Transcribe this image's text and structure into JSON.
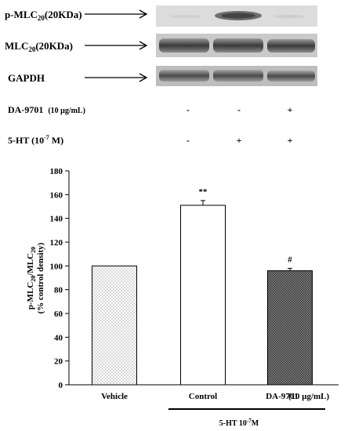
{
  "blot": {
    "rows": [
      {
        "label": "p-MLC",
        "subscript": "20",
        "suffix": "(20KDa)"
      },
      {
        "label": "MLC",
        "subscript": "20",
        "suffix": "(20KDa)"
      },
      {
        "label": "GAPDH",
        "subscript": "",
        "suffix": ""
      }
    ],
    "treatments": [
      {
        "label": "DA-9701",
        "conc": "(10 μg/mL)",
        "marks": [
          "-",
          "-",
          "+"
        ]
      },
      {
        "label": "5-HT (10",
        "exp": "-7",
        "unit": " M)",
        "marks": [
          "-",
          "+",
          "+"
        ]
      }
    ]
  },
  "chart_data": {
    "type": "bar",
    "categories": [
      "Vehicle",
      "Control",
      "DA-9701"
    ],
    "values": [
      100,
      151,
      96
    ],
    "errors": [
      0,
      4,
      2
    ],
    "significance": [
      "",
      "**",
      "#"
    ],
    "ylabel_line1": "p-MLC",
    "ylabel_sub1": "20",
    "ylabel_mid": "/MLC",
    "ylabel_sub2": "20",
    "ylabel_line2": "(% control density)",
    "ylim": [
      0,
      180
    ],
    "yticks": [
      0,
      20,
      40,
      60,
      80,
      100,
      120,
      140,
      160,
      180
    ],
    "category_suffix": "(10 μg/mL)",
    "group_label": "5-HT  10",
    "group_label_exp": "-7",
    "group_label_unit": "M",
    "grid": false
  }
}
